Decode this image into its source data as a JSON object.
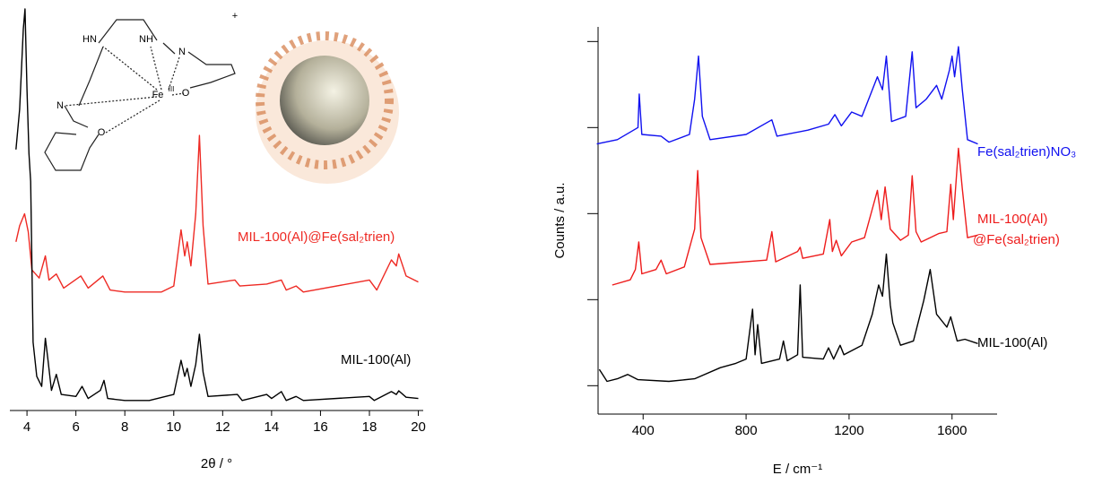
{
  "chart_data": [
    {
      "type": "line",
      "xlabel": "2θ / °",
      "xlim": [
        3.3,
        20.2
      ],
      "xticks": [
        4,
        6,
        8,
        10,
        12,
        14,
        16,
        18,
        20
      ],
      "ylim": [
        0,
        100
      ],
      "series": [
        {
          "name": "MIL-100(Al)@Fe(sal₂trien)",
          "color": "#ee2a24",
          "x": [
            3.55,
            3.7,
            3.9,
            4.05,
            4.2,
            4.5,
            4.75,
            4.9,
            5.2,
            5.5,
            6.2,
            6.5,
            7.1,
            7.4,
            8.0,
            9.5,
            10.0,
            10.3,
            10.45,
            10.55,
            10.7,
            10.9,
            11.05,
            11.2,
            11.4,
            12.5,
            12.7,
            13.8,
            14.4,
            14.6,
            15.0,
            15.3,
            18.0,
            18.3,
            18.9,
            19.1,
            19.2,
            19.5,
            20.0
          ],
          "values": [
            42,
            46,
            49,
            44.5,
            35,
            33,
            38.5,
            32.5,
            34,
            30.5,
            33.5,
            30.5,
            33.5,
            30,
            29.5,
            29.5,
            31,
            45,
            38.5,
            42,
            36,
            49,
            68.5,
            46,
            31.5,
            32.5,
            31,
            31.5,
            32.5,
            30,
            31,
            29.5,
            32.5,
            30,
            37.5,
            36,
            39,
            33.5,
            32
          ]
        },
        {
          "name": "MIL-100(Al)",
          "color": "#000000",
          "x": [
            3.55,
            3.7,
            3.85,
            3.92,
            4.0,
            4.08,
            4.15,
            4.25,
            4.4,
            4.6,
            4.75,
            4.85,
            5.0,
            5.2,
            5.4,
            6.0,
            6.25,
            6.5,
            7.0,
            7.15,
            7.3,
            8.0,
            9.0,
            10.0,
            10.3,
            10.45,
            10.55,
            10.7,
            10.9,
            11.05,
            11.2,
            11.4,
            12.6,
            12.8,
            13.8,
            14.0,
            14.4,
            14.6,
            15.0,
            15.3,
            18.0,
            18.2,
            18.9,
            19.1,
            19.2,
            19.5,
            20.0
          ],
          "values": [
            65,
            75,
            95,
            100,
            80,
            64,
            57,
            17,
            8.5,
            6,
            18,
            13,
            5,
            9,
            4,
            3.5,
            6,
            3,
            5,
            7.5,
            3,
            2.5,
            2.5,
            4,
            12.5,
            8.5,
            10.5,
            6,
            11.5,
            19,
            9.5,
            3.5,
            4,
            2.5,
            4,
            3,
            4.7,
            2.5,
            3.5,
            2.5,
            3.5,
            2.5,
            4.7,
            4,
            4.9,
            3.3,
            3
          ]
        }
      ],
      "structure": {
        "labels": [
          "HN",
          "NH",
          "N",
          "Fe",
          "III",
          "O",
          "N",
          "O",
          "+"
        ]
      }
    },
    {
      "type": "line",
      "xlabel": "E / cm⁻¹",
      "ylabel": "Counts / a.u.",
      "xlim": [
        225,
        1775
      ],
      "xticks": [
        400,
        800,
        1200,
        1600
      ],
      "ylim": [
        -0.33,
        4.17
      ],
      "yticks": [
        0,
        1,
        2,
        3,
        4
      ],
      "series": [
        {
          "name": "Fe(sal₂trien)NO₃",
          "color": "#1010f0",
          "x": [
            220,
            300,
            380,
            385,
            395,
            470,
            500,
            580,
            600,
            615,
            630,
            660,
            800,
            900,
            920,
            1040,
            1120,
            1145,
            1170,
            1210,
            1250,
            1310,
            1330,
            1345,
            1365,
            1420,
            1445,
            1460,
            1500,
            1540,
            1560,
            1590,
            1600,
            1610,
            1625,
            1640,
            1660,
            1700
          ],
          "values": [
            2.81,
            2.86,
            3.0,
            3.39,
            2.92,
            2.9,
            2.83,
            2.92,
            3.33,
            3.83,
            3.13,
            2.86,
            2.92,
            3.09,
            2.9,
            2.97,
            3.04,
            3.15,
            3.02,
            3.18,
            3.13,
            3.59,
            3.44,
            3.83,
            3.07,
            3.13,
            3.88,
            3.23,
            3.33,
            3.49,
            3.33,
            3.67,
            3.83,
            3.59,
            3.94,
            3.44,
            2.86,
            2.81
          ]
        },
        {
          "name": "MIL-100(Al)",
          "name2": "@Fe(sal₂trien)",
          "color": "#ee1c1c",
          "x": [
            280,
            350,
            370,
            383,
            395,
            450,
            470,
            490,
            560,
            600,
            612,
            625,
            660,
            880,
            900,
            915,
            1000,
            1010,
            1020,
            1100,
            1125,
            1135,
            1150,
            1170,
            1210,
            1260,
            1310,
            1325,
            1340,
            1360,
            1400,
            1430,
            1445,
            1460,
            1480,
            1550,
            1580,
            1595,
            1605,
            1625,
            1640,
            1660,
            1700
          ],
          "values": [
            1.17,
            1.23,
            1.35,
            1.67,
            1.3,
            1.35,
            1.46,
            1.3,
            1.38,
            1.82,
            2.5,
            1.72,
            1.41,
            1.46,
            1.79,
            1.44,
            1.56,
            1.61,
            1.48,
            1.53,
            1.93,
            1.56,
            1.69,
            1.51,
            1.67,
            1.72,
            2.27,
            1.93,
            2.31,
            1.82,
            1.69,
            1.75,
            2.44,
            1.79,
            1.67,
            1.77,
            1.79,
            2.34,
            1.93,
            2.76,
            2.29,
            1.72,
            1.75
          ]
        },
        {
          "name": "MIL-100(Al)",
          "color": "#000000",
          "x": [
            230,
            260,
            300,
            340,
            380,
            500,
            600,
            700,
            760,
            800,
            825,
            835,
            845,
            860,
            930,
            945,
            960,
            1000,
            1010,
            1020,
            1100,
            1120,
            1140,
            1165,
            1180,
            1250,
            1290,
            1315,
            1330,
            1345,
            1360,
            1370,
            1400,
            1450,
            1490,
            1515,
            1540,
            1580,
            1595,
            1620,
            1650,
            1700
          ],
          "values": [
            0.19,
            0.05,
            0.08,
            0.13,
            0.07,
            0.05,
            0.08,
            0.21,
            0.26,
            0.31,
            0.89,
            0.36,
            0.71,
            0.26,
            0.31,
            0.52,
            0.29,
            0.36,
            1.17,
            0.33,
            0.31,
            0.44,
            0.31,
            0.47,
            0.36,
            0.47,
            0.83,
            1.17,
            1.04,
            1.53,
            0.94,
            0.73,
            0.47,
            0.52,
            0.99,
            1.35,
            0.83,
            0.68,
            0.8,
            0.52,
            0.54,
            0.49
          ]
        }
      ]
    }
  ]
}
